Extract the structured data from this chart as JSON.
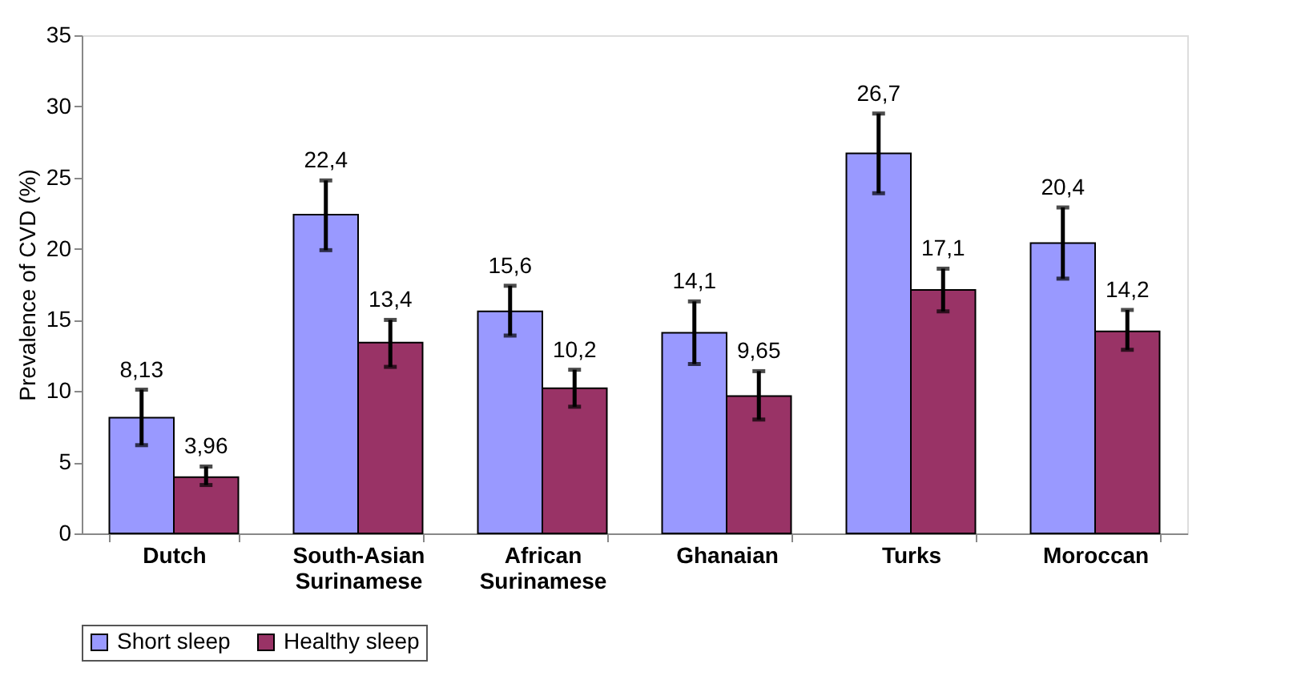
{
  "chart_data": {
    "type": "bar",
    "ylabel": "Prevalence of CVD (%)",
    "categories": [
      "Dutch",
      "South-Asian Surinamese",
      "African Surinamese",
      "Ghanaian",
      "Turks",
      "Moroccan"
    ],
    "series": [
      {
        "name": "Short sleep",
        "color": "#9999ff",
        "values": [
          8.13,
          22.4,
          15.6,
          14.1,
          26.7,
          20.4
        ],
        "value_labels": [
          "8,13",
          "22,4",
          "15,6",
          "14,1",
          "26,7",
          "20,4"
        ],
        "errors": [
          [
            6.2,
            10.1
          ],
          [
            19.9,
            24.8
          ],
          [
            13.9,
            17.4
          ],
          [
            11.9,
            16.3
          ],
          [
            23.9,
            29.5
          ],
          [
            17.9,
            22.9
          ]
        ]
      },
      {
        "name": "Healthy sleep",
        "color": "#993366",
        "values": [
          3.96,
          13.4,
          10.2,
          9.65,
          17.1,
          14.2
        ],
        "value_labels": [
          "3,96",
          "13,4",
          "10,2",
          "9,65",
          "17,1",
          "14,2"
        ],
        "errors": [
          [
            3.4,
            4.7
          ],
          [
            11.7,
            15.0
          ],
          [
            8.9,
            11.5
          ],
          [
            8.0,
            11.4
          ],
          [
            15.6,
            18.6
          ],
          [
            12.9,
            15.7
          ]
        ]
      }
    ],
    "ylim": [
      0,
      35
    ],
    "yticks": [
      0,
      5,
      10,
      15,
      20,
      25,
      30,
      35
    ],
    "grid": false,
    "legend": "bottom"
  }
}
